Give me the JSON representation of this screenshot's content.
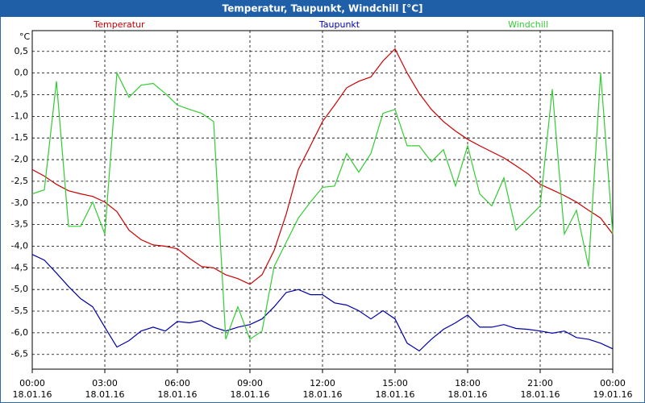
{
  "chart_data": {
    "type": "line",
    "title": "Temperatur, Taupunkt, Windchill [°C]",
    "y_label": "°C",
    "x": [
      0,
      0.5,
      1,
      1.5,
      2,
      2.5,
      3,
      3.5,
      4,
      4.5,
      5,
      5.5,
      6,
      6.5,
      7,
      7.5,
      8,
      8.5,
      9,
      9.5,
      10,
      10.5,
      11,
      11.5,
      12,
      12.5,
      13,
      13.5,
      14,
      14.5,
      15,
      15.5,
      16,
      16.5,
      17,
      17.5,
      18,
      18.5,
      19,
      19.5,
      20,
      20.5,
      21,
      21.5,
      22,
      22.5,
      23,
      23.5,
      24
    ],
    "xlim": [
      0,
      24
    ],
    "xticks": [
      {
        "value": 0,
        "label": "00:00",
        "date": "18.01.16"
      },
      {
        "value": 3,
        "label": "03:00",
        "date": "18.01.16"
      },
      {
        "value": 6,
        "label": "06:00",
        "date": "18.01.16"
      },
      {
        "value": 9,
        "label": "09:00",
        "date": "18.01.16"
      },
      {
        "value": 12,
        "label": "12:00",
        "date": "18.01.16"
      },
      {
        "value": 15,
        "label": "15:00",
        "date": "18.01.16"
      },
      {
        "value": 18,
        "label": "18:00",
        "date": "18.01.16"
      },
      {
        "value": 21,
        "label": "21:00",
        "date": "18.01.16"
      },
      {
        "value": 24,
        "label": "00:00",
        "date": "19.01.16"
      }
    ],
    "ylim": [
      -6.84,
      0.98
    ],
    "yticks": [
      {
        "value": 0.5,
        "label": "0,5"
      },
      {
        "value": 0,
        "label": "0,0"
      },
      {
        "value": -0.5,
        "label": "-0,5"
      },
      {
        "value": -1,
        "label": "-1,0"
      },
      {
        "value": -1.5,
        "label": "-1,5"
      },
      {
        "value": -2,
        "label": "-2,0"
      },
      {
        "value": -2.5,
        "label": "-2,5"
      },
      {
        "value": -3,
        "label": "-3,0"
      },
      {
        "value": -3.5,
        "label": "-3,5"
      },
      {
        "value": -4,
        "label": "-4,0"
      },
      {
        "value": -4.5,
        "label": "-4,5"
      },
      {
        "value": -5,
        "label": "-5,0"
      },
      {
        "value": -5.5,
        "label": "-5,5"
      },
      {
        "value": -6,
        "label": "-6,0"
      },
      {
        "value": -6.5,
        "label": "-6,5"
      }
    ],
    "grid": true,
    "series": [
      {
        "name": "Temperatur",
        "color": "#cc0000",
        "values": [
          -2.23,
          -2.38,
          -2.57,
          -2.72,
          -2.79,
          -2.85,
          -2.98,
          -3.2,
          -3.63,
          -3.85,
          -3.97,
          -4.0,
          -4.06,
          -4.28,
          -4.47,
          -4.5,
          -4.66,
          -4.75,
          -4.88,
          -4.66,
          -4.1,
          -3.26,
          -2.23,
          -1.68,
          -1.12,
          -0.74,
          -0.34,
          -0.19,
          -0.09,
          0.28,
          0.56,
          0.0,
          -0.47,
          -0.84,
          -1.12,
          -1.34,
          -1.53,
          -1.68,
          -1.82,
          -1.96,
          -2.14,
          -2.33,
          -2.57,
          -2.7,
          -2.83,
          -2.98,
          -3.17,
          -3.35,
          -3.72
        ]
      },
      {
        "name": "Taupunkt",
        "color": "#0000aa",
        "values": [
          -4.19,
          -4.32,
          -4.62,
          -4.93,
          -5.21,
          -5.4,
          -5.87,
          -6.33,
          -6.18,
          -5.96,
          -5.87,
          -5.96,
          -5.74,
          -5.77,
          -5.72,
          -5.87,
          -5.96,
          -5.87,
          -5.81,
          -5.68,
          -5.4,
          -5.07,
          -5.0,
          -5.12,
          -5.12,
          -5.31,
          -5.36,
          -5.49,
          -5.68,
          -5.49,
          -5.68,
          -6.24,
          -6.42,
          -6.15,
          -5.92,
          -5.77,
          -5.59,
          -5.87,
          -5.87,
          -5.81,
          -5.9,
          -5.92,
          -5.96,
          -6.01,
          -5.96,
          -6.11,
          -6.15,
          -6.24,
          -6.37
        ]
      },
      {
        "name": "Windchill",
        "color": "#33cc33",
        "values": [
          -2.79,
          -2.7,
          -0.19,
          -3.54,
          -3.54,
          -2.98,
          -3.72,
          0.0,
          -0.56,
          -0.28,
          -0.24,
          -0.47,
          -0.74,
          -0.84,
          -0.93,
          -1.12,
          -6.15,
          -5.4,
          -6.15,
          -5.96,
          -4.47,
          -3.91,
          -3.35,
          -2.98,
          -2.64,
          -2.61,
          -1.86,
          -2.29,
          -1.86,
          -0.93,
          -0.84,
          -1.68,
          -1.68,
          -2.05,
          -1.77,
          -2.61,
          -1.68,
          -2.79,
          -3.07,
          -2.42,
          -3.63,
          -3.35,
          -3.07,
          -0.37,
          -3.72,
          -3.17,
          -4.47,
          0.0,
          -3.72
        ]
      }
    ]
  }
}
